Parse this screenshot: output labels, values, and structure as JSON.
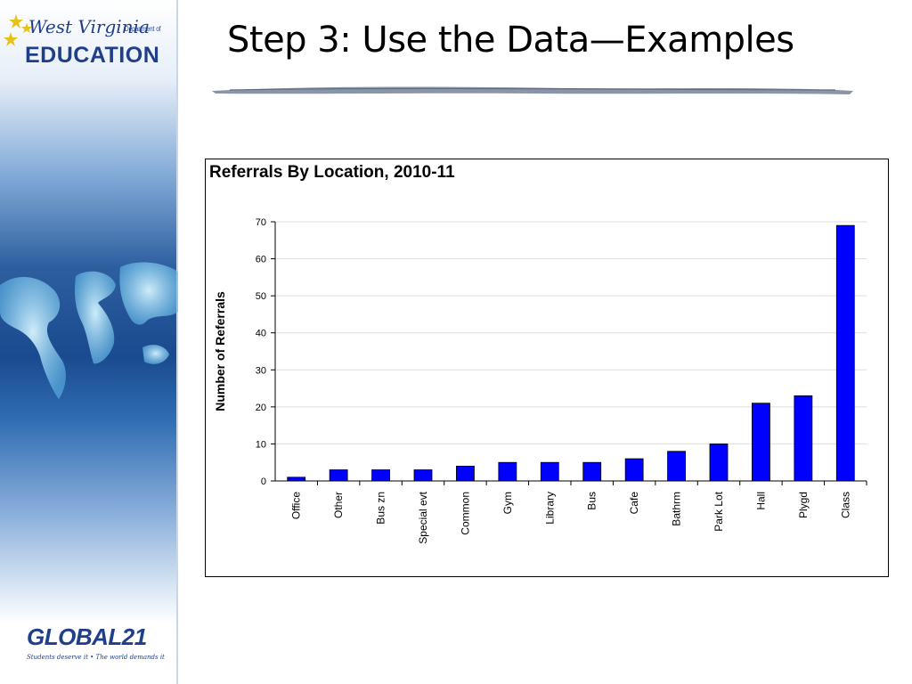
{
  "slide": {
    "title": "Step 3:  Use the Data—Examples"
  },
  "logos": {
    "wv_script": "West Virginia",
    "wv_dept": "Department of",
    "wv_edu": "EDUCATION",
    "global21_name": "GLOBAL21",
    "global21_tagline": "Students deserve it • The world demands it"
  },
  "colors": {
    "bar": "#0000ff",
    "accent_blue": "#1f3f8a"
  },
  "chart_data": {
    "type": "bar",
    "title": "Referrals By Location, 2010-11",
    "xlabel": "",
    "ylabel": "Number of Referrals",
    "categories": [
      "Office",
      "Other",
      "Bus zn",
      "Special evt",
      "Common",
      "Gym",
      "Library",
      "Bus",
      "Cafe",
      "Bathrm",
      "Park Lot",
      "Hall",
      "Plygd",
      "Class"
    ],
    "values": [
      1,
      3,
      3,
      3,
      4,
      5,
      5,
      5,
      6,
      8,
      10,
      21,
      23,
      69
    ],
    "ylim": [
      0,
      70
    ],
    "yticks": [
      0,
      10,
      20,
      30,
      40,
      50,
      60,
      70
    ],
    "grid": true,
    "legend": "none"
  }
}
